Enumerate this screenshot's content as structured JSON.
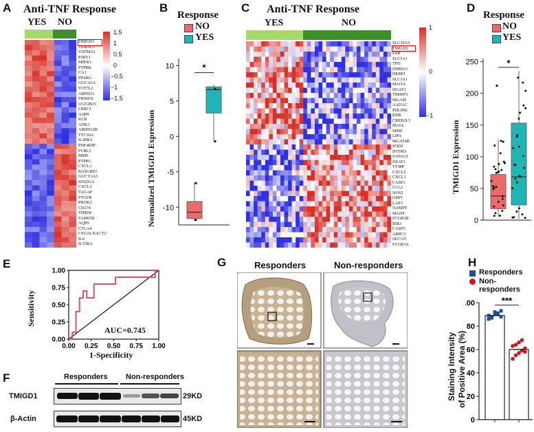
{
  "panels": {
    "A": "A",
    "B": "B",
    "C": "C",
    "D": "D",
    "E": "E",
    "F": "F",
    "G": "G",
    "H": "H"
  },
  "colors": {
    "red": "#d73027",
    "blue": "#3030e0",
    "white": "#ffffff",
    "yes_green": "#a6d96a",
    "no_green": "#3f8f2a",
    "box_no": "#ee6a6a",
    "box_yes": "#1fb5b5",
    "roc": "#e0525f",
    "resp_blue": "#1f4e9c",
    "nonresp_red": "#d0151c"
  },
  "panel_a": {
    "title": "Anti-TNF Response",
    "group_yes": "YES",
    "group_no": "NO",
    "genes": [
      "TMIGD1",
      "TUBAL3",
      "VSTM2A",
      "P2RY1",
      "MIER3",
      "PTPRK",
      "CA1",
      "PPARG",
      "GUCA2A",
      "TCF7L2",
      "ABHD11",
      "TRIM36",
      "UGT2B15",
      "LRRC1",
      "AQP8",
      "KLB",
      "ANK3",
      "ABHD12B",
      "TTC39A",
      "IL20RA",
      "PDE4DIP",
      "FCRL5",
      "MME",
      "PTPRC",
      "CXCL1",
      "RASGRP2",
      "GUCY1A3",
      "SH2D1A",
      "CXCL2",
      "TAGAP",
      "PTGFR",
      "PROK2",
      "CD274",
      "TIMD4",
      "FAM65B",
      "AQP9",
      "CTLA4",
      "CSGALNACT2",
      "IL6",
      "IL15RA"
    ],
    "highlight": "TMIGD1",
    "colorbar": [
      "1.5",
      "1",
      "0.5",
      "0",
      "−0.5",
      "−1",
      "−1.5"
    ]
  },
  "panel_b": {
    "legend_title": "Response",
    "legend": [
      "NO",
      "YES"
    ],
    "ylabel": "Normalized  TMIGD1  Expression",
    "sig": "*",
    "chart_data": {
      "type": "box",
      "categories": [
        "NO",
        "YES"
      ],
      "ylim": [
        -12.5,
        11
      ],
      "yticks": [
        10,
        5,
        0,
        -5,
        -10
      ],
      "boxes": [
        {
          "name": "NO",
          "min": -12,
          "q1": -11.6,
          "median": -10.7,
          "q3": -9.2,
          "max": -6.5,
          "points": [
            -11.8,
            -6.6
          ]
        },
        {
          "name": "YES",
          "min": -0.7,
          "q1": 3.3,
          "median": 6.6,
          "q3": 7.0,
          "max": 7.3,
          "points": [
            6.7,
            -0.7
          ]
        }
      ]
    }
  },
  "panel_c": {
    "title": "Anti-TNF Response",
    "group_yes": "YES",
    "group_no": "NO",
    "genes": [
      "SLC39A5",
      "TMIGD1",
      "EZR",
      "SLC5A1",
      "TPI1",
      "DHRS11",
      "HEBP1",
      "SLC3A1",
      "MAOA",
      "DGAT1",
      "TM4SF5",
      "MGAM",
      "AADAC",
      "PDLIM1",
      "KHK",
      "CREB3L3",
      "MALL",
      "MME",
      "LIPA",
      "MGAT4B",
      "SOD2",
      "IFITM3",
      "S100A11",
      "NEAT1",
      "TYMP",
      "CXCL5",
      "CXCL1",
      "CASP1",
      "CCL2",
      "NOS2",
      "GBP1",
      "LAP3",
      "NAMPT",
      "MANF",
      "FCGR3B",
      "IER3",
      "CASP5",
      "ARPC3",
      "SEC11C",
      "FCGR3A"
    ],
    "highlight": "TMIGD1",
    "colorbar": [
      "1",
      "0",
      "−1"
    ]
  },
  "panel_d": {
    "legend_title": "Response",
    "legend": [
      "NO",
      "YES"
    ],
    "ylabel": "TMIGD1  Expression",
    "sig": "*",
    "chart_data": {
      "type": "box",
      "categories": [
        "NO",
        "YES"
      ],
      "ylim": [
        0,
        255
      ],
      "yticks": [
        0,
        50,
        100,
        150,
        200,
        250
      ],
      "boxes": [
        {
          "name": "NO",
          "min": 5,
          "q1": 18,
          "median": 38,
          "q3": 72,
          "max": 127
        },
        {
          "name": "YES",
          "min": 2,
          "q1": 24,
          "median": 68,
          "q3": 153,
          "max": 235
        }
      ],
      "outliers": [
        {
          "group": "NO",
          "value": 212
        }
      ]
    }
  },
  "panel_e": {
    "xlabel": "1-Specificity",
    "ylabel": "Sensitivity",
    "auc": "AUC=0.745",
    "chart_data": {
      "type": "line",
      "x": [
        0,
        0.04,
        0.04,
        0.08,
        0.08,
        0.12,
        0.12,
        0.16,
        0.16,
        0.2,
        0.2,
        0.28,
        0.28,
        0.52,
        0.52,
        0.84,
        0.84,
        0.96,
        0.96,
        1.0
      ],
      "y": [
        0,
        0,
        0.1,
        0.1,
        0.4,
        0.4,
        0.6,
        0.6,
        0.7,
        0.7,
        0.6,
        0.6,
        0.8,
        0.8,
        0.9,
        0.9,
        0.9,
        0.9,
        1.0,
        1.0
      ],
      "xticks": [
        "0.00",
        "0.25",
        "0.50",
        "0.75",
        "1.00"
      ],
      "yticks": [
        "1.00",
        "0.75",
        "0.50",
        "0.25",
        "0.00"
      ],
      "xlim": [
        0,
        1
      ],
      "ylim": [
        0,
        1
      ]
    }
  },
  "panel_f": {
    "group1": "Responders",
    "group2": "Non-responders",
    "row1_label": "TMIGD1",
    "row1_size": "29KD",
    "row2_label": "β-Actin",
    "row2_size": "45KD"
  },
  "panel_g": {
    "col1": "Responders",
    "col2": "Non-responders"
  },
  "panel_h": {
    "legend": [
      "Responders",
      "Non-responders"
    ],
    "ylabel1": "Staining Intensity",
    "ylabel2": "of Positive Area (%)",
    "sig": "***",
    "chart_data": {
      "type": "bar",
      "categories": [
        "Responders",
        "Non-responders"
      ],
      "values": [
        89,
        60
      ],
      "ylim": [
        0,
        100
      ],
      "yticks": [
        100,
        80,
        60,
        40,
        20,
        0
      ],
      "points": {
        "Responders": [
          86,
          88,
          90,
          91,
          93,
          89,
          87,
          92,
          90,
          88
        ],
        "Non-responders": [
          52,
          55,
          57,
          59,
          61,
          63,
          64,
          66,
          68,
          58
        ]
      }
    }
  }
}
